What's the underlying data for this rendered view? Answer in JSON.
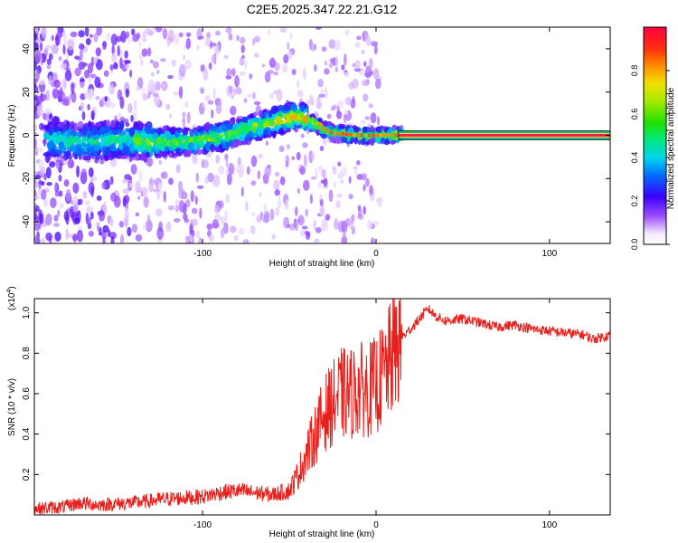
{
  "figure_title": "C2E5.2025.347.22.21.G12",
  "chart_data": [
    {
      "type": "heatmap",
      "title": "C2E5.2025.347.22.21.G12",
      "xlabel": "Height of straight line (km)",
      "ylabel": "Frequency (Hz)",
      "xlim": [
        -197,
        135
      ],
      "ylim": [
        -50,
        50
      ],
      "x_ticks": [
        -100,
        0,
        100
      ],
      "y_ticks": [
        -40,
        -20,
        0,
        20,
        40
      ],
      "colorbar": {
        "label": "Normalized spectral amplitude",
        "range": [
          0,
          1
        ],
        "ticks": [
          0.0,
          0.2,
          0.4,
          0.6,
          0.8
        ]
      },
      "ridge_points": [
        {
          "x": -190,
          "y": -2
        },
        {
          "x": -170,
          "y": -3
        },
        {
          "x": -150,
          "y": -2
        },
        {
          "x": -130,
          "y": -3
        },
        {
          "x": -110,
          "y": -3
        },
        {
          "x": -90,
          "y": -1
        },
        {
          "x": -75,
          "y": 3
        },
        {
          "x": -60,
          "y": 6
        },
        {
          "x": -45,
          "y": 9
        },
        {
          "x": -35,
          "y": 5
        },
        {
          "x": -25,
          "y": 1
        },
        {
          "x": -10,
          "y": 0
        },
        {
          "x": 0,
          "y": 0
        },
        {
          "x": 15,
          "y": 0
        },
        {
          "x": 135,
          "y": 0
        }
      ],
      "constant_band": {
        "x_start": 13,
        "x_end": 135,
        "frequency": 0
      }
    },
    {
      "type": "line",
      "title": "",
      "xlabel": "Height of straight line (km)",
      "ylabel": "SNR (10 * v/v)",
      "y_multiplier_label": "(x10",
      "y_multiplier_exp": "4",
      "xlim": [
        -197,
        135
      ],
      "ylim": [
        0,
        1.07
      ],
      "x_ticks": [
        -100,
        0,
        100
      ],
      "y_ticks": [
        0.2,
        0.4,
        0.6,
        0.8,
        1.0
      ],
      "series": [
        {
          "name": "SNR",
          "color": "#e8201c",
          "x": [
            -197,
            -180,
            -170,
            -160,
            -140,
            -120,
            -100,
            -90,
            -80,
            -70,
            -60,
            -50,
            -45,
            -40,
            -35,
            -30,
            -25,
            -20,
            -15,
            -10,
            -5,
            0,
            5,
            10,
            15,
            20,
            25,
            30,
            35,
            40,
            50,
            60,
            70,
            80,
            90,
            100,
            110,
            120,
            125,
            130,
            135
          ],
          "y": [
            0.03,
            0.04,
            0.06,
            0.05,
            0.06,
            0.08,
            0.09,
            0.11,
            0.12,
            0.11,
            0.1,
            0.12,
            0.2,
            0.3,
            0.4,
            0.5,
            0.55,
            0.6,
            0.6,
            0.62,
            0.62,
            0.64,
            0.7,
            0.8,
            0.88,
            0.92,
            0.97,
            1.02,
            0.98,
            0.96,
            0.97,
            0.95,
            0.93,
            0.94,
            0.92,
            0.91,
            0.9,
            0.89,
            0.87,
            0.88,
            0.89
          ]
        }
      ]
    }
  ]
}
